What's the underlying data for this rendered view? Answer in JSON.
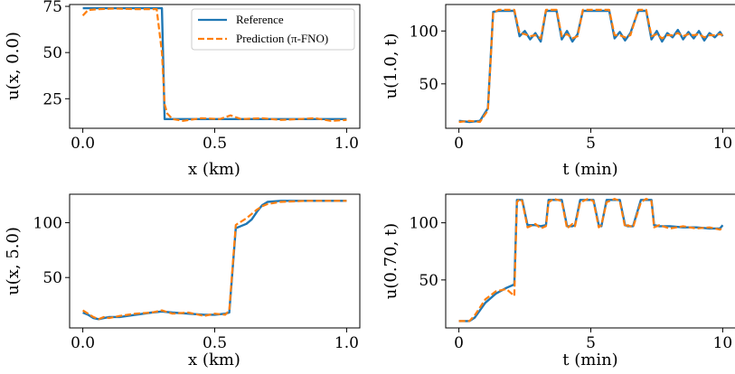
{
  "colors": {
    "reference": "#1f77b4",
    "prediction": "#ff7f0e",
    "axis": "#000000",
    "legend_frame": "#cccccc"
  },
  "legend": {
    "reference_label": "Reference",
    "prediction_label": "Prediction (π-FNO)"
  },
  "chart_data": [
    {
      "type": "line",
      "id": "panel-1",
      "xlabel": "x (km)",
      "ylabel": "u(x, 0.0)",
      "xlim": [
        -0.05,
        1.05
      ],
      "ylim": [
        9,
        76
      ],
      "xticks": [
        0.0,
        0.5,
        1.0
      ],
      "xtick_labels": [
        "0.0",
        "0.5",
        "1.0"
      ],
      "yticks": [
        25,
        50,
        75
      ],
      "ytick_labels": [
        "25",
        "50",
        "75"
      ],
      "show_legend": true,
      "series": [
        {
          "name": "Reference",
          "x": [
            0,
            0.28,
            0.3,
            0.31,
            1.0
          ],
          "y": [
            74,
            74,
            74,
            14,
            14
          ]
        },
        {
          "name": "Prediction (π-FNO)",
          "x": [
            0,
            0.02,
            0.06,
            0.12,
            0.2,
            0.28,
            0.3,
            0.31,
            0.32,
            0.34,
            0.38,
            0.45,
            0.52,
            0.56,
            0.6,
            0.68,
            0.75,
            0.82,
            0.88,
            0.94,
            1.0
          ],
          "y": [
            70,
            73,
            73.5,
            73.8,
            73.5,
            73.5,
            50,
            22,
            17,
            14,
            13,
            14.5,
            14,
            16,
            14,
            14.5,
            13.5,
            14,
            14.5,
            13,
            13.5
          ]
        }
      ]
    },
    {
      "type": "line",
      "id": "panel-2",
      "xlabel": "t (min)",
      "ylabel": "u(1.0, t)",
      "xlim": [
        -0.5,
        10.5
      ],
      "ylim": [
        8,
        125
      ],
      "xticks": [
        0,
        5,
        10
      ],
      "xtick_labels": [
        "0",
        "5",
        "10"
      ],
      "yticks": [
        50,
        100
      ],
      "ytick_labels": [
        "50",
        "100"
      ],
      "show_legend": false,
      "series": [
        {
          "name": "Reference",
          "x": [
            0,
            0.4,
            0.8,
            1.1,
            1.3,
            1.5,
            2.1,
            2.3,
            2.5,
            2.7,
            2.9,
            3.1,
            3.3,
            3.5,
            3.7,
            3.9,
            4.1,
            4.3,
            4.5,
            4.7,
            4.9,
            5.1,
            5.4,
            5.7,
            5.9,
            6.1,
            6.3,
            6.5,
            6.8,
            7.1,
            7.3,
            7.5,
            7.7,
            7.9,
            8.1,
            8.3,
            8.5,
            8.7,
            8.9,
            9.1,
            9.3,
            9.5,
            9.7,
            9.9,
            10.0
          ],
          "y": [
            15,
            14,
            15,
            27,
            118,
            119,
            119,
            95,
            100,
            92,
            98,
            90,
            119,
            119,
            119,
            92,
            100,
            90,
            97,
            119,
            119,
            119,
            119,
            119,
            93,
            99,
            91,
            98,
            119,
            119,
            92,
            100,
            90,
            98,
            94,
            101,
            92,
            99,
            93,
            100,
            91,
            98,
            94,
            99,
            95
          ]
        },
        {
          "name": "Prediction (π-FNO)",
          "x": [
            0,
            0.4,
            0.8,
            1.1,
            1.3,
            1.5,
            2.1,
            2.3,
            2.5,
            2.7,
            2.9,
            3.1,
            3.3,
            3.5,
            3.7,
            3.9,
            4.1,
            4.3,
            4.5,
            4.7,
            4.9,
            5.1,
            5.4,
            5.7,
            5.9,
            6.1,
            6.3,
            6.5,
            6.8,
            7.1,
            7.3,
            7.5,
            7.7,
            7.9,
            8.1,
            8.3,
            8.5,
            8.7,
            8.9,
            9.1,
            9.3,
            9.5,
            9.7,
            9.9,
            10.0
          ],
          "y": [
            14,
            15,
            14,
            25,
            117,
            120,
            120,
            98,
            97,
            95,
            96,
            93,
            120,
            120,
            120,
            95,
            97,
            93,
            95,
            120,
            120,
            120,
            120,
            120,
            96,
            96,
            94,
            96,
            120,
            120,
            95,
            97,
            93,
            96,
            96,
            98,
            95,
            97,
            96,
            97,
            94,
            96,
            96,
            97,
            96
          ]
        }
      ]
    },
    {
      "type": "line",
      "id": "panel-3",
      "xlabel": "x (km)",
      "ylabel": "u(x, 5.0)",
      "xlim": [
        -0.05,
        1.05
      ],
      "ylim": [
        4,
        126
      ],
      "xticks": [
        0.0,
        0.5,
        1.0
      ],
      "xtick_labels": [
        "0.0",
        "0.5",
        "1.0"
      ],
      "yticks": [
        50,
        100
      ],
      "ytick_labels": [
        "50",
        "100"
      ],
      "show_legend": false,
      "series": [
        {
          "name": "Reference",
          "x": [
            0,
            0.02,
            0.04,
            0.06,
            0.08,
            0.1,
            0.14,
            0.2,
            0.26,
            0.3,
            0.34,
            0.4,
            0.46,
            0.5,
            0.54,
            0.555,
            0.58,
            0.6,
            0.62,
            0.64,
            0.66,
            0.68,
            0.7,
            0.75,
            0.85,
            1.0
          ],
          "y": [
            18,
            16,
            13,
            12,
            13,
            14,
            14,
            16,
            18,
            19,
            18,
            17,
            16,
            16,
            17,
            18,
            95,
            97,
            99,
            103,
            110,
            116,
            119,
            120,
            120,
            120
          ]
        },
        {
          "name": "Prediction (π-FNO)",
          "x": [
            0,
            0.02,
            0.04,
            0.06,
            0.08,
            0.1,
            0.14,
            0.2,
            0.26,
            0.3,
            0.34,
            0.4,
            0.46,
            0.5,
            0.54,
            0.555,
            0.58,
            0.6,
            0.62,
            0.64,
            0.66,
            0.68,
            0.7,
            0.75,
            0.85,
            1.0
          ],
          "y": [
            20,
            17,
            14,
            12,
            14,
            13,
            15,
            17,
            18,
            20,
            17,
            18,
            15,
            17,
            16,
            20,
            98,
            101,
            104,
            108,
            112,
            115,
            117,
            119,
            120,
            120
          ]
        }
      ]
    },
    {
      "type": "line",
      "id": "panel-4",
      "xlabel": "t (min)",
      "ylabel": "u(0.70, t)",
      "xlim": [
        -0.5,
        10.5
      ],
      "ylim": [
        8,
        125
      ],
      "xticks": [
        0,
        5,
        10
      ],
      "xtick_labels": [
        "0",
        "5",
        "10"
      ],
      "yticks": [
        50,
        100
      ],
      "ytick_labels": [
        "50",
        "100"
      ],
      "show_legend": false,
      "series": [
        {
          "name": "Reference",
          "x": [
            0,
            0.4,
            0.6,
            1.0,
            1.4,
            1.8,
            2.1,
            2.2,
            2.3,
            2.4,
            2.6,
            2.9,
            3.1,
            3.3,
            3.4,
            3.6,
            3.9,
            4.1,
            4.3,
            4.4,
            4.6,
            4.9,
            5.1,
            5.3,
            5.4,
            5.6,
            5.9,
            6.1,
            6.3,
            6.4,
            6.6,
            6.9,
            7.1,
            7.3,
            7.4,
            7.6,
            8.0,
            8.5,
            9.0,
            9.5,
            9.9,
            10.0
          ],
          "y": [
            14,
            14,
            17,
            30,
            38,
            43,
            46,
            120,
            120,
            120,
            98,
            98,
            97,
            98,
            120,
            120,
            120,
            97,
            97,
            98,
            120,
            120,
            120,
            98,
            97,
            120,
            120,
            120,
            98,
            97,
            97,
            120,
            120,
            120,
            98,
            97,
            97,
            96,
            96,
            95,
            95,
            98
          ]
        },
        {
          "name": "Prediction (π-FNO)",
          "x": [
            0,
            0.4,
            0.6,
            1.0,
            1.4,
            1.8,
            2.1,
            2.2,
            2.3,
            2.4,
            2.6,
            2.9,
            3.1,
            3.3,
            3.4,
            3.6,
            3.9,
            4.1,
            4.3,
            4.4,
            4.6,
            4.9,
            5.1,
            5.3,
            5.4,
            5.6,
            5.9,
            6.1,
            6.3,
            6.4,
            6.6,
            6.9,
            7.1,
            7.3,
            7.4,
            7.6,
            8.0,
            8.5,
            9.0,
            9.5,
            9.9,
            10.0
          ],
          "y": [
            14,
            14,
            19,
            33,
            40,
            42,
            36,
            118,
            121,
            119,
            96,
            99,
            95,
            97,
            118,
            121,
            119,
            95,
            99,
            97,
            118,
            121,
            119,
            96,
            98,
            118,
            121,
            119,
            96,
            98,
            96,
            118,
            121,
            119,
            96,
            98,
            95,
            97,
            95,
            96,
            94,
            96
          ]
        }
      ]
    }
  ]
}
